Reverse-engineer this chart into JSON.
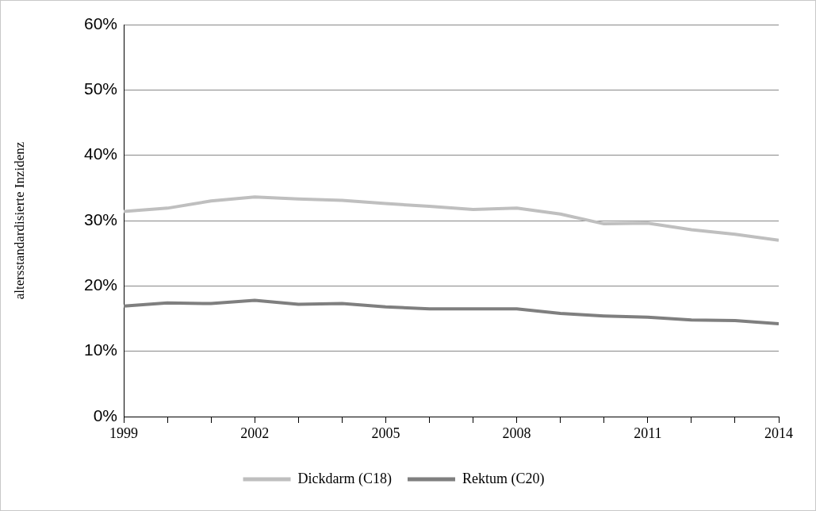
{
  "chart_data": {
    "type": "line",
    "ylabel": "altersstandardisierte Inzidenz",
    "x": [
      1999,
      2000,
      2001,
      2002,
      2003,
      2004,
      2005,
      2006,
      2007,
      2008,
      2009,
      2010,
      2011,
      2012,
      2013,
      2014
    ],
    "series": [
      {
        "name": "Dickdarm (C18)",
        "color": "#bfbfbf",
        "values": [
          31.4,
          31.9,
          33.0,
          33.6,
          33.3,
          33.1,
          32.6,
          32.2,
          31.7,
          31.9,
          31.0,
          29.5,
          29.6,
          28.6,
          27.9,
          27.0
        ]
      },
      {
        "name": "Rektum (C20)",
        "color": "#7f7f7f",
        "values": [
          16.9,
          17.4,
          17.3,
          17.8,
          17.2,
          17.3,
          16.8,
          16.5,
          16.5,
          16.5,
          15.8,
          15.4,
          15.2,
          14.8,
          14.7,
          14.2
        ]
      }
    ],
    "xlim": [
      1999,
      2014
    ],
    "xticks": [
      1999,
      {
        "value": 2000,
        "label": null
      },
      {
        "value": 2001,
        "label": null
      },
      2002,
      {
        "value": 2003,
        "label": null
      },
      {
        "value": 2004,
        "label": null
      },
      2005,
      {
        "value": 2006,
        "label": null
      },
      {
        "value": 2007,
        "label": null
      },
      2008,
      {
        "value": 2009,
        "label": null
      },
      {
        "value": 2010,
        "label": null
      },
      2011,
      {
        "value": 2012,
        "label": null
      },
      {
        "value": 2013,
        "label": null
      },
      2014
    ],
    "ylim": [
      0,
      60
    ],
    "yticks": [
      {
        "value": 0,
        "label": "0%"
      },
      {
        "value": 10,
        "label": "10%"
      },
      {
        "value": 20,
        "label": "20%"
      },
      {
        "value": 30,
        "label": "30%"
      },
      {
        "value": 40,
        "label": "40%"
      },
      {
        "value": 50,
        "label": "50%"
      },
      {
        "value": 60,
        "label": "60%"
      }
    ],
    "grid": "y",
    "legend": "bottom",
    "marker": "none"
  }
}
